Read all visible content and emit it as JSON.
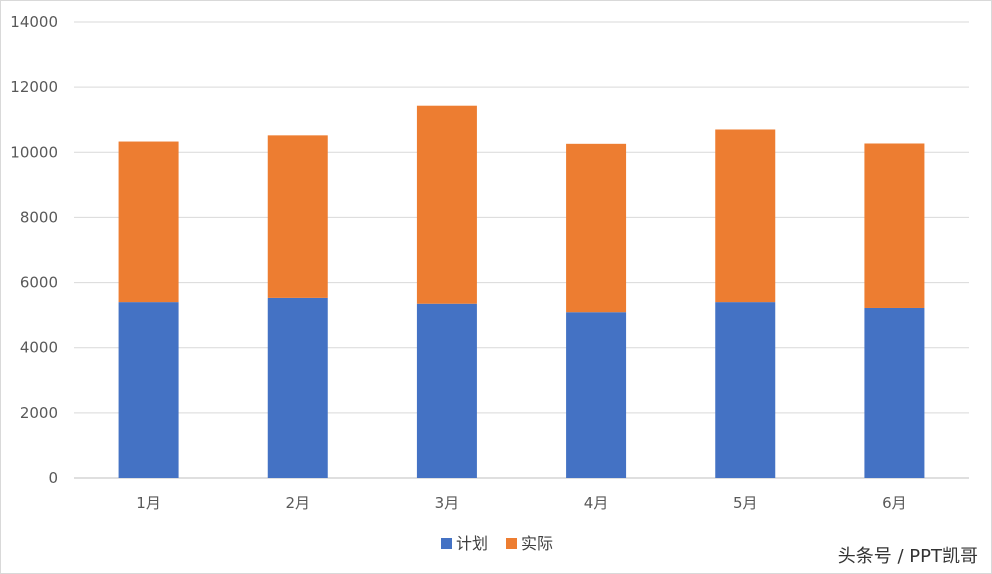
{
  "chart_data": {
    "type": "bar",
    "stacked": true,
    "categories": [
      "1月",
      "2月",
      "3月",
      "4月",
      "5月",
      "6月"
    ],
    "series": [
      {
        "name": "计划",
        "color": "#4472C4",
        "values": [
          5400,
          5530,
          5350,
          5090,
          5400,
          5220
        ]
      },
      {
        "name": "实际",
        "color": "#ED7D31",
        "values": [
          4930,
          4990,
          6080,
          5170,
          5300,
          5050
        ]
      }
    ],
    "ylim": [
      0,
      14000
    ],
    "yticks": [
      "0",
      "2000",
      "4000",
      "6000",
      "8000",
      "10000",
      "12000",
      "14000"
    ],
    "grid": true,
    "legend_position": "bottom-center"
  },
  "watermark": "头条号 / PPT凯哥"
}
